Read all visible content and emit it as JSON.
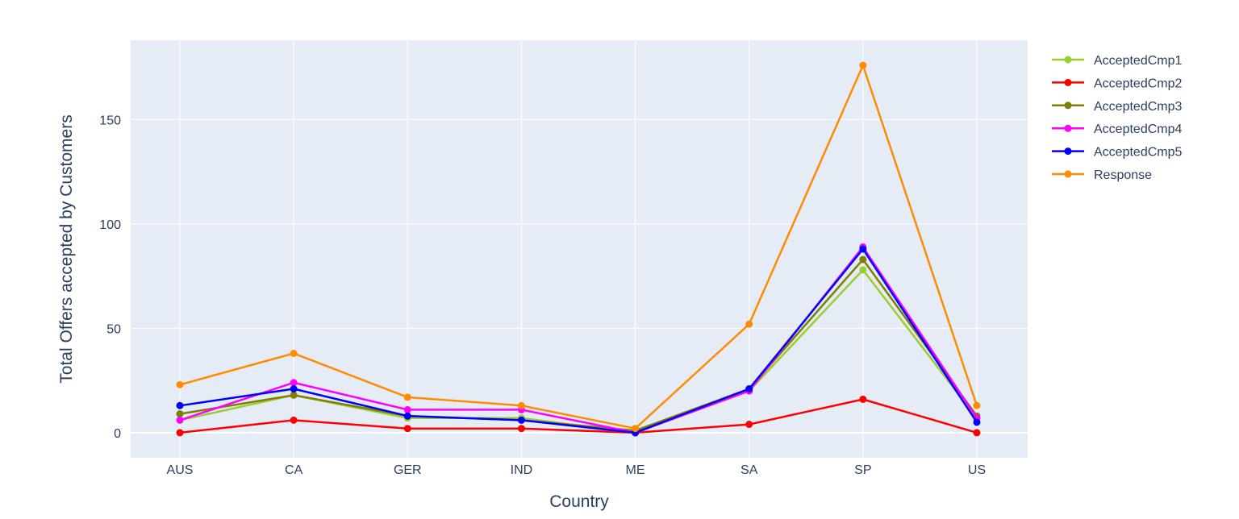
{
  "chart_data": {
    "type": "line",
    "title": "",
    "xlabel": "Country",
    "ylabel": "Total Offers accepted by Customers",
    "categories": [
      "AUS",
      "CA",
      "GER",
      "IND",
      "ME",
      "SA",
      "SP",
      "US"
    ],
    "ylim": [
      -12,
      188
    ],
    "yticks": [
      0,
      50,
      100,
      150
    ],
    "grid": true,
    "legend_position": "top-right",
    "plot_background": "#e5ecf6",
    "series": [
      {
        "name": "AcceptedCmp1",
        "color": "#9acd32",
        "values": [
          6,
          18,
          7,
          7,
          0,
          20,
          78,
          7
        ]
      },
      {
        "name": "AcceptedCmp2",
        "color": "#ff0000",
        "values": [
          0,
          6,
          2,
          2,
          0,
          4,
          16,
          0
        ]
      },
      {
        "name": "AcceptedCmp3",
        "color": "#808000",
        "values": [
          9,
          18,
          8,
          6,
          1,
          21,
          83,
          8
        ]
      },
      {
        "name": "AcceptedCmp4",
        "color": "#ff00ff",
        "values": [
          6,
          24,
          11,
          11,
          0,
          20,
          89,
          7
        ]
      },
      {
        "name": "AcceptedCmp5",
        "color": "#0000ff",
        "values": [
          13,
          21,
          8,
          6,
          0,
          21,
          88,
          5
        ]
      },
      {
        "name": "Response",
        "color": "#ff8c00",
        "values": [
          23,
          38,
          17,
          13,
          2,
          52,
          176,
          13
        ]
      }
    ]
  }
}
